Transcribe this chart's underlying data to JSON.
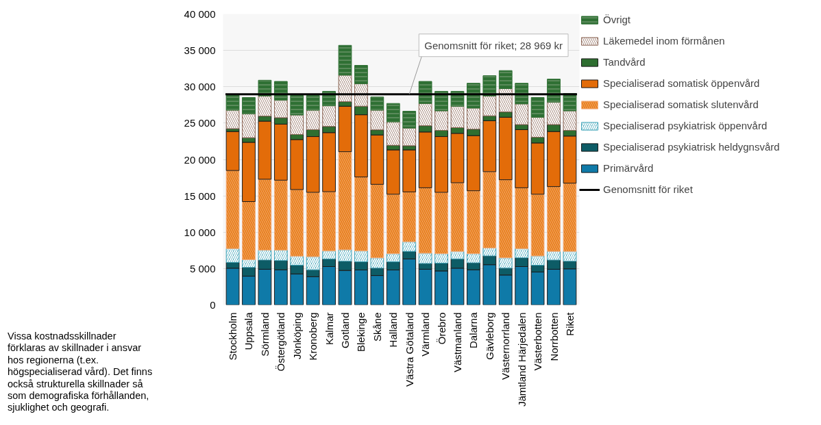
{
  "chart_data": {
    "type": "bar",
    "stacked": true,
    "categories": [
      "Stockholm",
      "Uppsala",
      "Sörmland",
      "Östergötland",
      "Jönköping",
      "Kronoberg",
      "Kalmar",
      "Gotland",
      "Blekinge",
      "Skåne",
      "Halland",
      "Västra Götaland",
      "Värmland",
      "Örebro",
      "Västmanland",
      "Dalarna",
      "Gävleborg",
      "Västernorrland",
      "Jämtland Härjedalen",
      "Västerbotten",
      "Norrbotten",
      "Riket"
    ],
    "series": [
      {
        "name": "Primärvård",
        "color": "#0f7aa8",
        "values": [
          5050,
          3950,
          4900,
          4830,
          4260,
          3880,
          5270,
          4740,
          4800,
          4040,
          4800,
          6320,
          4900,
          4670,
          5050,
          4830,
          5530,
          4110,
          5270,
          4520,
          4900,
          4960
        ]
      },
      {
        "name": "Specialiserad psykiatrisk heldygnsvård",
        "color": "#0d5c66",
        "values": [
          800,
          1200,
          1260,
          1270,
          1200,
          950,
          1050,
          1260,
          1140,
          1010,
          1140,
          1040,
          790,
          1080,
          1270,
          950,
          1200,
          940,
          1200,
          940,
          1260,
          1040
        ]
      },
      {
        "name": "Specialiserad psykiatrisk öppenvård",
        "color": "#3fa3b8",
        "values": [
          1890,
          1070,
          1360,
          1420,
          1240,
          1800,
          1100,
          1580,
          1480,
          1420,
          1100,
          1330,
          1420,
          1290,
          1040,
          1260,
          1100,
          1420,
          1270,
          1270,
          1200,
          1360
        ]
      },
      {
        "name": "Specialiserad somatisk slutenvård",
        "color": "#f4b183",
        "values": [
          10740,
          7990,
          9760,
          9630,
          9160,
          8850,
          8150,
          13490,
          10170,
          10110,
          8180,
          6850,
          9000,
          8440,
          9440,
          8660,
          10490,
          10740,
          8370,
          8490,
          8910,
          9380
        ]
      },
      {
        "name": "Specialiserad somatisk öppenvård",
        "color": "#e36c09",
        "values": [
          5370,
          8150,
          7990,
          7710,
          6880,
          7670,
          8120,
          6250,
          8560,
          6790,
          6100,
          5780,
          7670,
          7670,
          6790,
          7580,
          7010,
          8600,
          7990,
          7050,
          7580,
          6480
        ]
      },
      {
        "name": "Tandvård",
        "color": "#2e6e30",
        "values": [
          380,
          640,
          690,
          880,
          700,
          950,
          850,
          630,
          1170,
          700,
          630,
          570,
          860,
          850,
          790,
          880,
          670,
          720,
          690,
          790,
          940,
          780
        ]
      },
      {
        "name": "Läkemedel inom förmånen",
        "color": "#8a6555",
        "values": [
          2550,
          3280,
          2780,
          2430,
          2680,
          2680,
          2840,
          3640,
          3100,
          2710,
          3220,
          2430,
          3060,
          2690,
          2940,
          2910,
          2740,
          3220,
          2850,
          2750,
          3100,
          2690
        ]
      },
      {
        "name": "Övrigt",
        "color": "#2f7034",
        "values": [
          2060,
          2240,
          2150,
          2560,
          2780,
          2030,
          1990,
          4100,
          2520,
          1800,
          2530,
          2310,
          3030,
          2680,
          2050,
          3410,
          2780,
          2470,
          2840,
          2710,
          3160,
          2370
        ]
      }
    ],
    "ylim": [
      0,
      40000
    ],
    "yticks": [
      {
        "value": 0,
        "label": "0"
      },
      {
        "value": 5000,
        "label": "5 000"
      },
      {
        "value": 10000,
        "label": "10 000"
      },
      {
        "value": 15000,
        "label": "15 000"
      },
      {
        "value": 20000,
        "label": "20 000"
      },
      {
        "value": 25000,
        "label": "25 000"
      },
      {
        "value": 30000,
        "label": "30 000"
      },
      {
        "value": 35000,
        "label": "35 000"
      },
      {
        "value": 40000,
        "label": "40 000"
      }
    ],
    "grid": "y",
    "legend": "right",
    "ref_lines": [
      {
        "axis": "y",
        "value": 28969,
        "label": "Genomsnitt för riket",
        "color": "#000000"
      }
    ],
    "annotations": [
      {
        "text": "Genomsnitt för riket; 28 969 kr",
        "x": "Västra Götaland",
        "y": 28969
      },
      "Vissa kostnadsskillnader förklaras av skillnader i ansvar hos regionerna (t.ex. högspecialiserad vård). Det finns också strukturella skillnader så som demografiska förhållanden, sjuklighet och geografi."
    ]
  }
}
